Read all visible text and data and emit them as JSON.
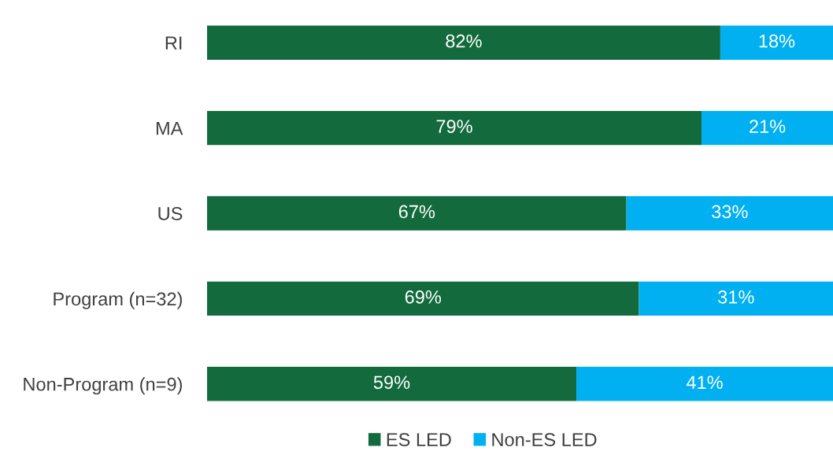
{
  "chart_data": {
    "type": "bar",
    "orientation": "horizontal",
    "stacked": true,
    "categories": [
      "RI",
      "MA",
      "US",
      "Program (n=32)",
      "Non-Program (n=9)"
    ],
    "series": [
      {
        "name": "ES LED",
        "color": "#136b3d",
        "values": [
          82,
          79,
          67,
          69,
          59
        ],
        "value_labels": [
          "82%",
          "79%",
          "67%",
          "69%",
          "59%"
        ]
      },
      {
        "name": "Non-ES LED",
        "color": "#00b0f0",
        "values": [
          18,
          21,
          33,
          31,
          41
        ],
        "value_labels": [
          "18%",
          "21%",
          "33%",
          "31%",
          "41%"
        ]
      }
    ],
    "legend": "bottom",
    "grid": false
  }
}
